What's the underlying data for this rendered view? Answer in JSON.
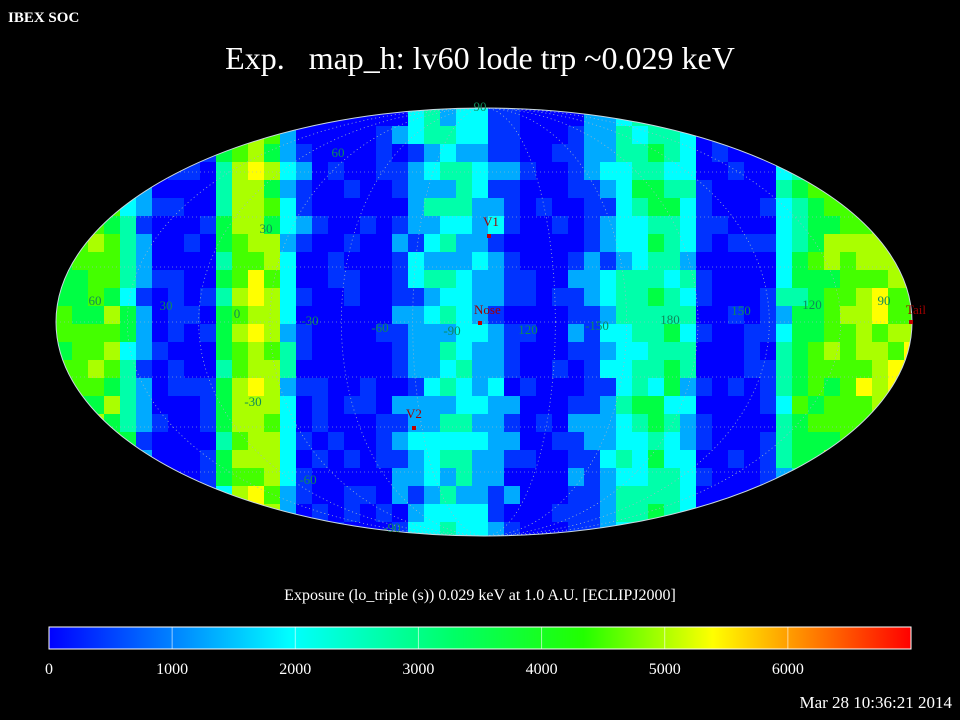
{
  "header": {
    "corner_label": "IBEX SOC",
    "title_prefix": "Exp.",
    "title_main": "map_h: lv60 lode trp ~0.029 keV"
  },
  "caption": "Exposure (lo_triple (s))  0.029 keV at 1.0 A.U. [ECLIPJ2000]",
  "timestamp": "Mar 28 10:36:21 2014",
  "map": {
    "projection": "Mollweide (ecliptic J2000)",
    "longitude_labels": [
      "60",
      "30",
      "0",
      "-30",
      "-60",
      "-90",
      "120",
      "-150",
      "180",
      "150",
      "120",
      "90"
    ],
    "latitude_labels": [
      "90",
      "60",
      "30",
      "-30",
      "-60",
      "-90"
    ],
    "markers": [
      {
        "label": "V1",
        "color": "#c00000"
      },
      {
        "label": "Nose",
        "color": "#c00000"
      },
      {
        "label": "V2",
        "color": "#c00000"
      },
      {
        "label": "Tail",
        "color": "#c00000"
      }
    ],
    "label_colors": {
      "grid_text": "#0e8a5a",
      "marker_text": "#a00000",
      "grid_lines": "#9fb8c8"
    }
  },
  "colorbar": {
    "ticks": [
      "0",
      "1000",
      "2000",
      "3000",
      "4000",
      "5000",
      "6000"
    ],
    "range": [
      0,
      7000
    ],
    "colors": [
      "#0000ff",
      "#00ffff",
      "#00ff00",
      "#ffff00",
      "#ff0000"
    ]
  }
}
